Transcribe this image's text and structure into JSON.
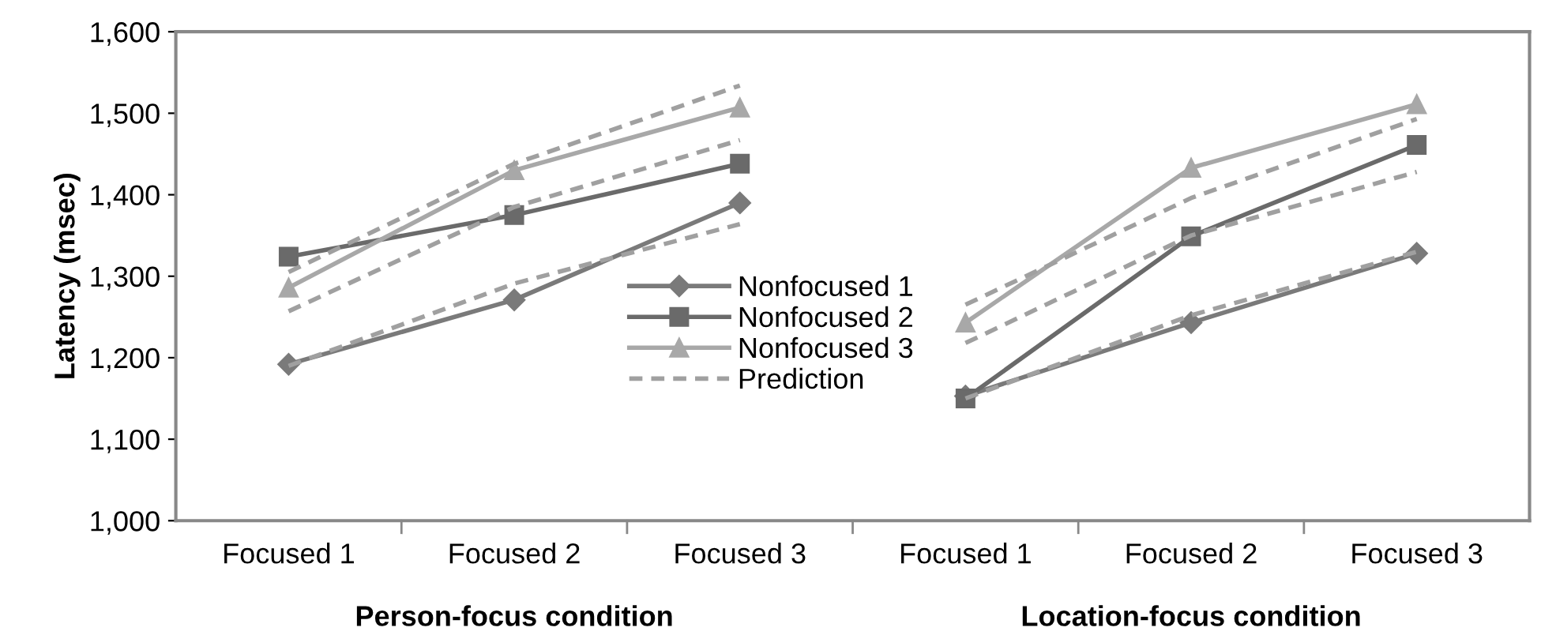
{
  "chart_data": {
    "type": "line",
    "ylabel": "Latency (msec)",
    "categories": [
      "Focused 1",
      "Focused 2",
      "Focused 3",
      "Focused 1",
      "Focused 2",
      "Focused 3"
    ],
    "series": [
      {
        "name": "Nonfocused 1",
        "color": "#7a7a7a",
        "marker": "diamond",
        "line_style": "solid",
        "values": [
          1192,
          1271,
          1390,
          null,
          null,
          null
        ]
      },
      {
        "color": "#7a7a7a",
        "marker": "diamond",
        "line_style": "solid",
        "values": [
          null,
          null,
          null,
          1153,
          1243,
          1328
        ]
      },
      {
        "name": "Nonfocused 2",
        "color": "#6a6a6a",
        "marker": "square",
        "line_style": "solid",
        "values": [
          1324,
          1375,
          1438,
          null,
          null,
          null
        ]
      },
      {
        "color": "#6a6a6a",
        "marker": "square",
        "line_style": "solid",
        "values": [
          null,
          null,
          null,
          1150,
          1349,
          1461
        ]
      },
      {
        "name": "Nonfocused 3",
        "color": "#a8a8a8",
        "marker": "triangle",
        "line_style": "solid",
        "values": [
          1286,
          1430,
          1507,
          null,
          null,
          null
        ]
      },
      {
        "color": "#a8a8a8",
        "marker": "triangle",
        "line_style": "solid",
        "values": [
          null,
          null,
          null,
          1243,
          1433,
          1511
        ]
      },
      {
        "name": "Prediction",
        "color": "#a0a0a0",
        "marker": "none",
        "line_style": "dashed",
        "values": [
          1190,
          1291,
          1364,
          null,
          null,
          null
        ]
      },
      {
        "color": "#a0a0a0",
        "marker": "none",
        "line_style": "dashed",
        "values": [
          1257,
          1385,
          1467,
          null,
          null,
          null
        ]
      },
      {
        "color": "#a0a0a0",
        "marker": "none",
        "line_style": "dashed",
        "values": [
          1305,
          1438,
          1534,
          null,
          null,
          null
        ]
      },
      {
        "color": "#a0a0a0",
        "marker": "none",
        "line_style": "dashed",
        "values": [
          null,
          null,
          null,
          1150,
          1252,
          1330
        ]
      },
      {
        "color": "#a0a0a0",
        "marker": "none",
        "line_style": "dashed",
        "values": [
          null,
          null,
          null,
          1218,
          1350,
          1428
        ]
      },
      {
        "color": "#a0a0a0",
        "marker": "none",
        "line_style": "dashed",
        "values": [
          null,
          null,
          null,
          1265,
          1396,
          1493
        ]
      }
    ],
    "ylim": [
      1000,
      1600
    ],
    "yticks": [
      {
        "value": 1000,
        "label": "1,000"
      },
      {
        "value": 1100,
        "label": "1,100"
      },
      {
        "value": 1200,
        "label": "1,200"
      },
      {
        "value": 1300,
        "label": "1,300"
      },
      {
        "value": 1400,
        "label": "1,400"
      },
      {
        "value": 1500,
        "label": "1,500"
      },
      {
        "value": 1600,
        "label": "1,600"
      }
    ],
    "annotations": [
      "Person-focus condition",
      "Location-focus condition"
    ],
    "grid": false,
    "legend": "center"
  }
}
